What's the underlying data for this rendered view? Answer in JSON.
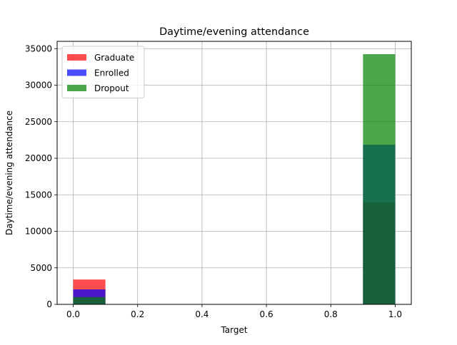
{
  "chart_data": {
    "type": "bar",
    "title": "Daytime/evening attendance",
    "xlabel": "Target",
    "ylabel": "Daytime/evening attendance",
    "xlim": [
      -0.05,
      1.05
    ],
    "ylim": [
      0,
      36000
    ],
    "xticks": [
      0.0,
      0.2,
      0.4,
      0.6,
      0.8,
      1.0
    ],
    "xtick_labels": [
      "0.0",
      "0.2",
      "0.4",
      "0.6",
      "0.8",
      "1.0"
    ],
    "yticks": [
      0,
      5000,
      10000,
      15000,
      20000,
      25000,
      30000,
      35000
    ],
    "ytick_labels": [
      "0",
      "5000",
      "10000",
      "15000",
      "20000",
      "25000",
      "30000",
      "35000"
    ],
    "grid": true,
    "legend_position": "top-left",
    "bins": [
      [
        0.0,
        0.1
      ],
      [
        0.9,
        1.0
      ]
    ],
    "series": [
      {
        "name": "Graduate",
        "color": "#ff0000",
        "alpha": 0.7,
        "values": [
          3400,
          13950
        ]
      },
      {
        "name": "Enrolled",
        "color": "#0000ff",
        "alpha": 0.7,
        "values": [
          2050,
          21850
        ]
      },
      {
        "name": "Dropout",
        "color": "#008000",
        "alpha": 0.7,
        "values": [
          1000,
          34250
        ]
      }
    ]
  }
}
